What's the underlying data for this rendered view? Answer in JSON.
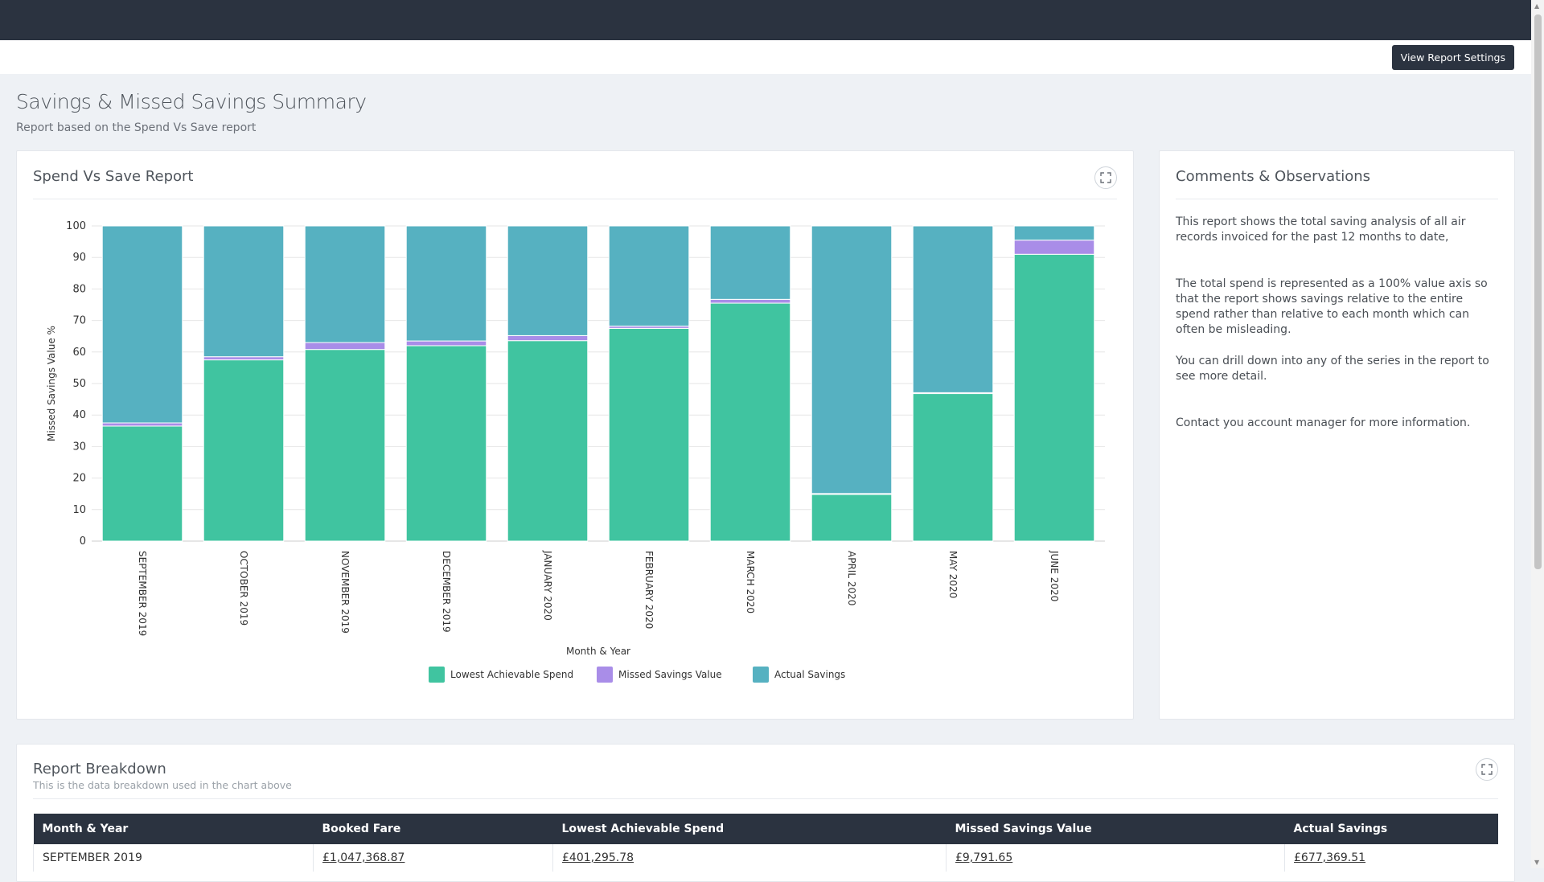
{
  "toolbar": {
    "settings_button": "View Report Settings"
  },
  "page": {
    "title": "Savings & Missed Savings Summary",
    "subtitle": "Report based on the Spend Vs Save report"
  },
  "chart_card": {
    "title": "Spend Vs Save Report",
    "expand_icon": "expand-icon"
  },
  "chart_data": {
    "type": "bar",
    "stacked": true,
    "categories": [
      "SEPTEMBER 2019",
      "OCTOBER 2019",
      "NOVEMBER 2019",
      "DECEMBER 2019",
      "JANUARY 2020",
      "FEBRUARY 2020",
      "MARCH 2020",
      "APRIL 2020",
      "MAY 2020",
      "JUNE 2020"
    ],
    "series": [
      {
        "name": "Lowest Achievable Spend",
        "color": "#40c4a0",
        "values": [
          36.5,
          57.5,
          60.8,
          62,
          63.6,
          67.5,
          75.5,
          14.8,
          46.8,
          91
        ]
      },
      {
        "name": "Missed Savings Value",
        "color": "#a98de8",
        "values": [
          1,
          1,
          2.2,
          1.5,
          1.6,
          0.7,
          1.2,
          0.3,
          0.3,
          4.5
        ]
      },
      {
        "name": "Actual Savings",
        "color": "#56b1c1",
        "values": [
          62.5,
          41.5,
          37,
          36.5,
          34.8,
          31.8,
          23.3,
          84.9,
          52.9,
          4.5
        ]
      }
    ],
    "xlabel": "Month & Year",
    "ylabel": "Missed Savings Value %",
    "ylim": [
      0,
      100
    ],
    "yticks": [
      0,
      10,
      20,
      30,
      40,
      50,
      60,
      70,
      80,
      90,
      100
    ],
    "grid": true,
    "legend": "bottom-center"
  },
  "comments_card": {
    "title": "Comments & Observations",
    "paragraphs": [
      "This report shows the total saving analysis of all air records invoiced for the past 12 months to date,",
      "The total spend is represented as a 100% value axis so that the report shows savings relative to the entire spend rather than relative to each month which can often be misleading.",
      "You can drill down into any of the series in the report to see more detail.",
      "Contact you account manager for more information."
    ]
  },
  "breakdown": {
    "title": "Report Breakdown",
    "subtitle": "This is the data breakdown used in the chart above",
    "columns": [
      "Month & Year",
      "Booked Fare",
      "Lowest Achievable Spend",
      "Missed Savings Value",
      "Actual Savings"
    ],
    "rows": [
      [
        "SEPTEMBER 2019",
        "£1,047,368.87",
        "£401,295.78",
        "£9,791.65",
        "£677,369.51"
      ]
    ]
  },
  "colors": {
    "navbar": "#2b3340",
    "background": "#eef1f5"
  }
}
